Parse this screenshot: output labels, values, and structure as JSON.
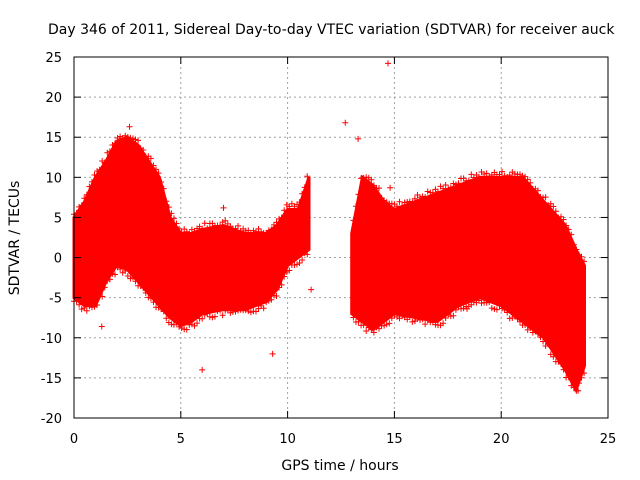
{
  "chart_data": {
    "type": "scatter",
    "title": "Day 346 of 2011, Sidereal Day-to-day VTEC variation (SDTVAR) for receiver auck",
    "xlabel": "GPS time / hours",
    "ylabel": "SDTVAR / TECUs",
    "xlim": [
      0,
      25
    ],
    "ylim": [
      -20,
      25
    ],
    "x_ticks": [
      0,
      5,
      10,
      15,
      20,
      25
    ],
    "y_ticks": [
      -20,
      -15,
      -10,
      -5,
      0,
      5,
      10,
      15,
      20,
      25
    ],
    "x_tick_labels": [
      "0",
      "5",
      "10",
      "15",
      "20",
      "25"
    ],
    "y_tick_labels": [
      "-20",
      "-15",
      "-10",
      "-5",
      "0",
      "5",
      "10",
      "15",
      "20",
      "25"
    ],
    "grid": true,
    "marker": "+",
    "series_color": "#ff0000",
    "series": [
      {
        "name": "SDTVAR",
        "envelope": [
          {
            "x": 0.0,
            "upper": 5.0,
            "lower": -5.0
          },
          {
            "x": 0.5,
            "upper": 7.0,
            "lower": -6.0
          },
          {
            "x": 1.0,
            "upper": 10.0,
            "lower": -6.0
          },
          {
            "x": 1.5,
            "upper": 12.0,
            "lower": -3.0
          },
          {
            "x": 2.0,
            "upper": 14.5,
            "lower": -1.0
          },
          {
            "x": 2.5,
            "upper": 15.0,
            "lower": -1.5
          },
          {
            "x": 3.0,
            "upper": 14.0,
            "lower": -3.0
          },
          {
            "x": 3.5,
            "upper": 12.0,
            "lower": -4.5
          },
          {
            "x": 4.0,
            "upper": 10.0,
            "lower": -6.0
          },
          {
            "x": 4.5,
            "upper": 5.0,
            "lower": -7.5
          },
          {
            "x": 5.0,
            "upper": 3.0,
            "lower": -8.5
          },
          {
            "x": 5.5,
            "upper": 3.0,
            "lower": -8.0
          },
          {
            "x": 6.0,
            "upper": 3.5,
            "lower": -7.0
          },
          {
            "x": 7.0,
            "upper": 4.0,
            "lower": -6.5
          },
          {
            "x": 8.0,
            "upper": 3.0,
            "lower": -6.5
          },
          {
            "x": 9.0,
            "upper": 3.0,
            "lower": -5.5
          },
          {
            "x": 9.5,
            "upper": 4.0,
            "lower": -4.0
          },
          {
            "x": 10.0,
            "upper": 6.0,
            "lower": -1.0
          },
          {
            "x": 10.5,
            "upper": 6.0,
            "lower": 0.0
          },
          {
            "x": 11.0,
            "upper": 10.0,
            "lower": 1.0
          },
          {
            "x": 13.0,
            "upper": 3.0,
            "lower": -7.0
          },
          {
            "x": 13.5,
            "upper": 10.0,
            "lower": -8.0
          },
          {
            "x": 14.0,
            "upper": 9.0,
            "lower": -9.0
          },
          {
            "x": 14.5,
            "upper": 7.0,
            "lower": -8.0
          },
          {
            "x": 15.0,
            "upper": 6.0,
            "lower": -7.0
          },
          {
            "x": 16.0,
            "upper": 7.0,
            "lower": -7.5
          },
          {
            "x": 17.0,
            "upper": 8.0,
            "lower": -8.0
          },
          {
            "x": 18.0,
            "upper": 9.0,
            "lower": -6.0
          },
          {
            "x": 19.0,
            "upper": 10.0,
            "lower": -5.0
          },
          {
            "x": 20.0,
            "upper": 10.0,
            "lower": -6.0
          },
          {
            "x": 21.0,
            "upper": 10.0,
            "lower": -8.0
          },
          {
            "x": 22.0,
            "upper": 7.0,
            "lower": -10.0
          },
          {
            "x": 23.0,
            "upper": 4.0,
            "lower": -14.0
          },
          {
            "x": 23.5,
            "upper": 1.0,
            "lower": -16.5
          },
          {
            "x": 23.9,
            "upper": -1.0,
            "lower": -13.5
          }
        ],
        "outliers": [
          {
            "x": 14.7,
            "y": 24.2
          },
          {
            "x": 12.7,
            "y": 16.8
          },
          {
            "x": 2.6,
            "y": 16.3
          },
          {
            "x": 13.3,
            "y": 14.8
          },
          {
            "x": 7.0,
            "y": 6.2
          },
          {
            "x": 11.1,
            "y": -4.0
          },
          {
            "x": 18.4,
            "y": -6.4
          },
          {
            "x": 1.3,
            "y": -8.6
          },
          {
            "x": 6.0,
            "y": -14.0
          },
          {
            "x": 9.3,
            "y": -12.0
          },
          {
            "x": 14.8,
            "y": 8.7
          },
          {
            "x": 16.0,
            "y": -7.5
          },
          {
            "x": 23.6,
            "y": -16.6
          }
        ]
      }
    ]
  }
}
